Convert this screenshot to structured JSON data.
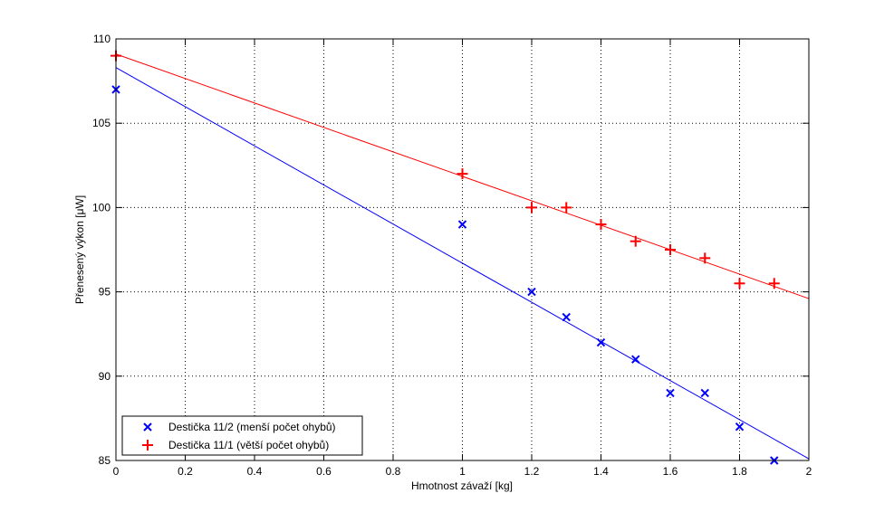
{
  "chart_data": {
    "type": "scatter",
    "title": "",
    "xlabel": "Hmotnost závaží [kg]",
    "ylabel": "Přenesený výkon [μW]",
    "xlim": [
      0,
      2
    ],
    "ylim": [
      85,
      110
    ],
    "xticks": [
      "0",
      "0.2",
      "0.4",
      "0.6",
      "0.8",
      "1",
      "1.2",
      "1.4",
      "1.6",
      "1.8",
      "2"
    ],
    "yticks": [
      "85",
      "90",
      "95",
      "100",
      "105",
      "110"
    ],
    "grid": true,
    "legend_position": "bottom-left",
    "series": [
      {
        "name": "Destička 11/2 (menší počet ohybů)",
        "marker": "x",
        "color": "#0000ff",
        "x": [
          0,
          1,
          1.2,
          1.3,
          1.4,
          1.5,
          1.6,
          1.7,
          1.8,
          1.9
        ],
        "y": [
          107,
          99,
          95,
          93.5,
          92,
          91,
          89,
          89,
          87,
          85
        ],
        "fit_line": {
          "x": [
            0,
            2
          ],
          "y": [
            108.3,
            85.1
          ]
        }
      },
      {
        "name": "Destička 11/1 (větší počet ohybů)",
        "marker": "+",
        "color": "#ff0000",
        "x": [
          0,
          1,
          1.2,
          1.3,
          1.4,
          1.5,
          1.6,
          1.7,
          1.8,
          1.9
        ],
        "y": [
          109,
          102,
          100,
          100,
          99,
          98,
          97.5,
          97,
          95.5,
          95.5
        ],
        "fit_line": {
          "x": [
            0,
            2
          ],
          "y": [
            109.1,
            94.6
          ]
        }
      }
    ]
  }
}
